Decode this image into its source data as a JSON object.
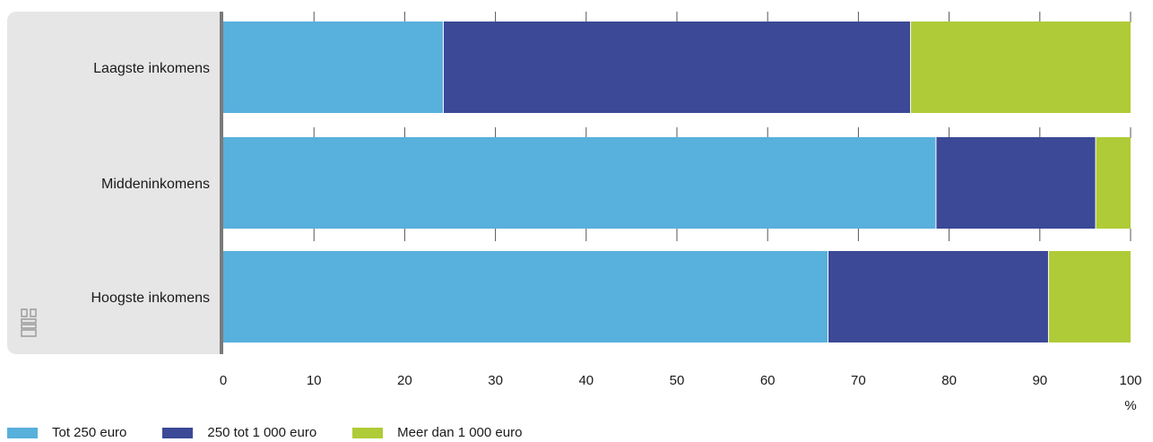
{
  "chart_data": {
    "type": "bar",
    "orientation": "horizontal",
    "stacked": true,
    "categories": [
      "Laagste inkomens",
      "Middeninkomens",
      "Hoogste inkomens"
    ],
    "series": [
      {
        "name": "Tot 250 euro",
        "values": [
          24.3,
          78.6,
          66.7
        ],
        "color": "#58b0dc"
      },
      {
        "name": "250 tot 1 000 euro",
        "values": [
          51.5,
          17.6,
          24.3
        ],
        "color": "#3b4996"
      },
      {
        "name": "Meer dan 1 000 euro",
        "values": [
          24.2,
          3.8,
          9.0
        ],
        "color": "#afcb37"
      }
    ],
    "xlim": [
      0,
      100
    ],
    "xticks": [
      "0",
      "10",
      "20",
      "30",
      "40",
      "50",
      "60",
      "70",
      "80",
      "90",
      "100"
    ],
    "xunit": "%",
    "legend_position": "bottom-left",
    "grid": true
  }
}
